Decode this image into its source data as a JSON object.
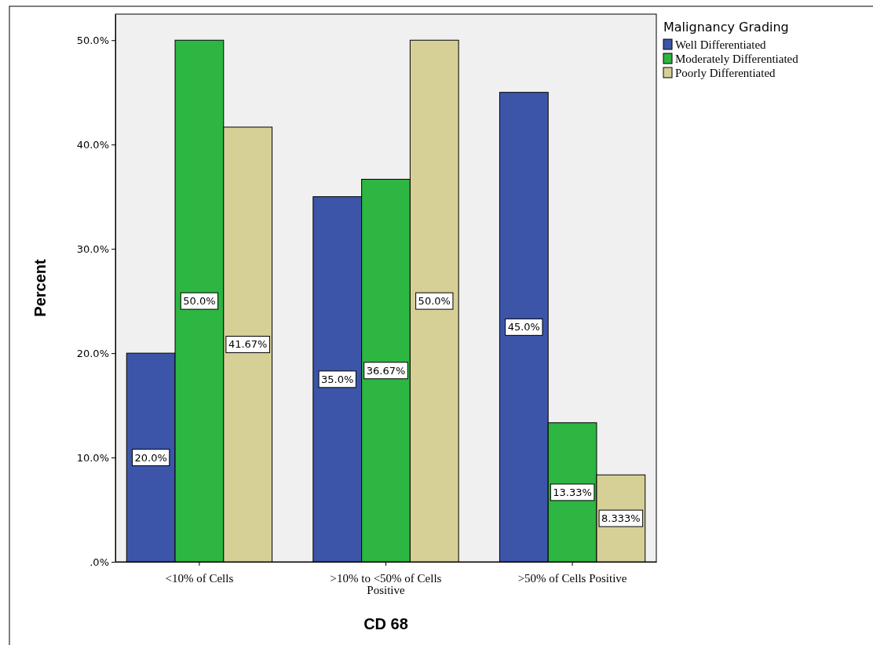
{
  "chart_data": {
    "type": "bar",
    "xlabel": "CD 68",
    "ylabel": "Percent",
    "legend_title": "Malignancy Grading",
    "categories": [
      "<10% of Cells",
      ">10% to <50% of Cells Positive",
      ">50% of Cells Positive"
    ],
    "series": [
      {
        "name": "Well Differentiated",
        "color": "#3d55a8",
        "values": [
          20.0,
          35.0,
          45.0
        ],
        "value_labels": [
          "20.0%",
          "35.0%",
          "45.0%"
        ]
      },
      {
        "name": "Moderately Differentiated",
        "color": "#2db642",
        "values": [
          50.0,
          36.67,
          13.33
        ],
        "value_labels": [
          "50.0%",
          "36.67%",
          "13.33%"
        ]
      },
      {
        "name": "Poorly Differentiated",
        "color": "#d6d097",
        "values": [
          41.67,
          50.0,
          8.333
        ],
        "value_labels": [
          "41.67%",
          "50.0%",
          "8.333%"
        ]
      }
    ],
    "ylim": [
      0,
      52.5
    ],
    "yticks": [
      {
        "value": 0,
        "label": ".0%"
      },
      {
        "value": 10,
        "label": "10.0%"
      },
      {
        "value": 20,
        "label": "20.0%"
      },
      {
        "value": 30,
        "label": "30.0%"
      },
      {
        "value": 40,
        "label": "40.0%"
      },
      {
        "value": 50,
        "label": "50.0%"
      }
    ],
    "grid": false,
    "legend": "top right"
  }
}
